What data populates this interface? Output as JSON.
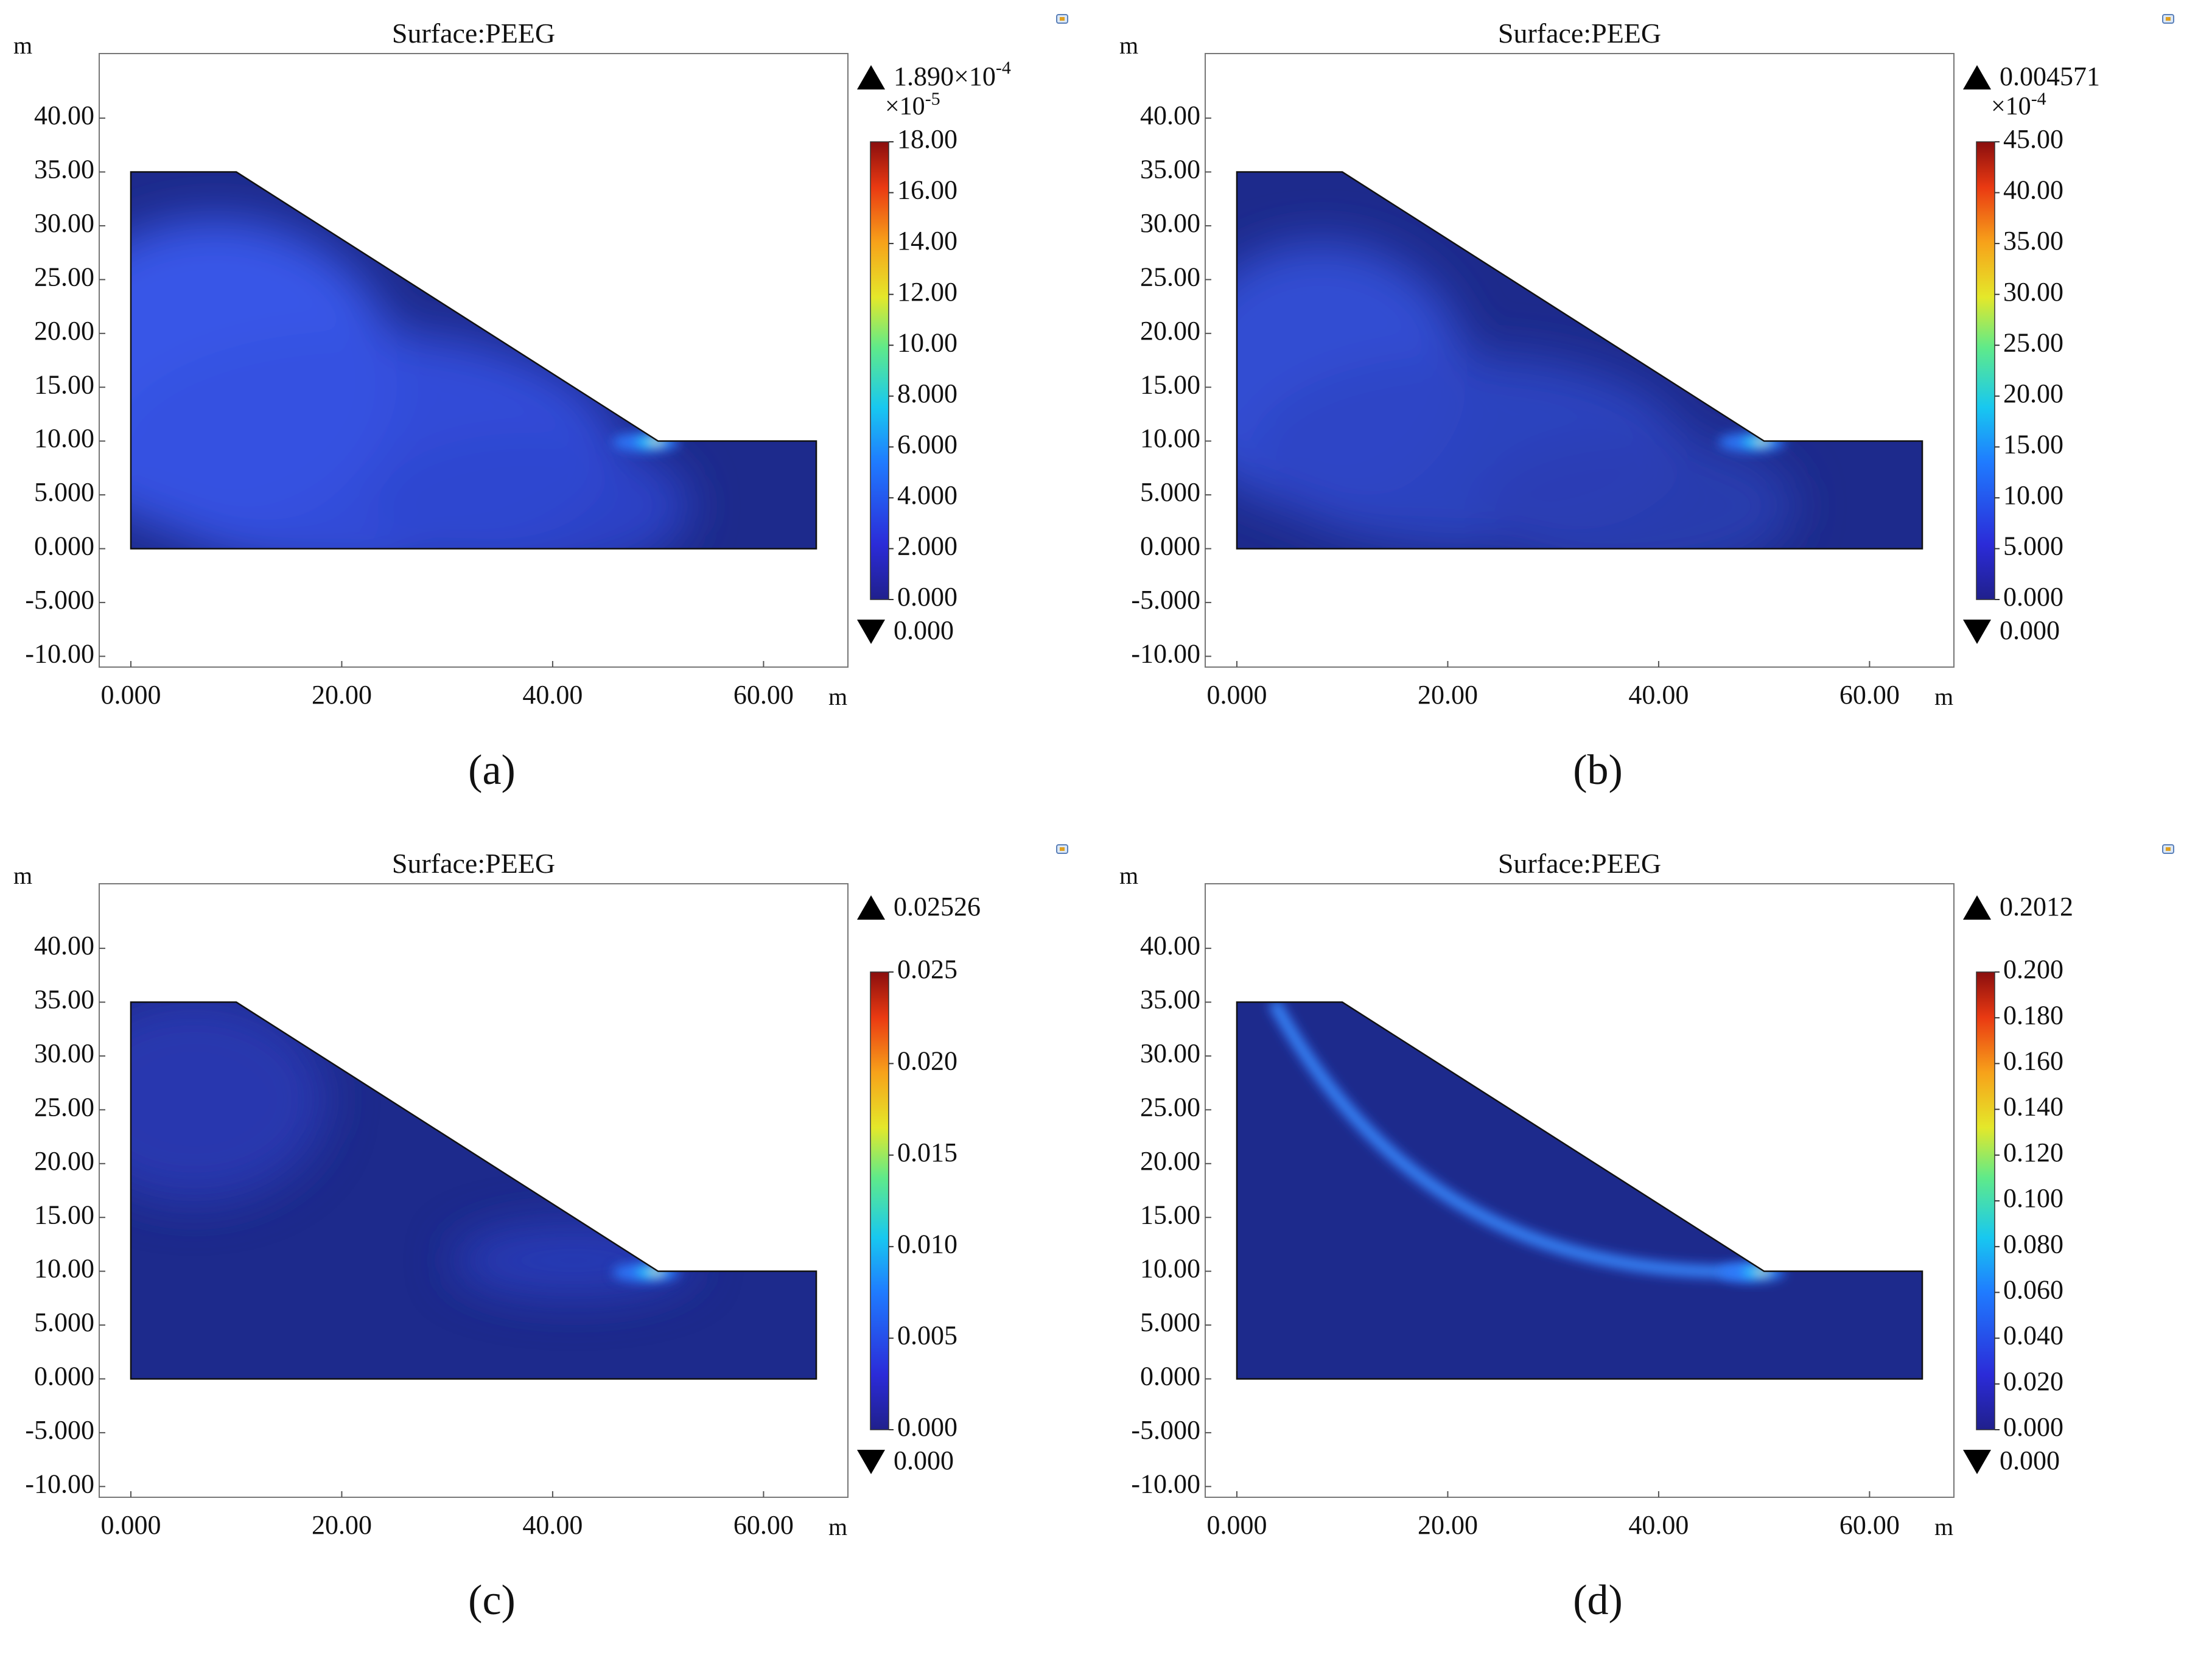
{
  "figure": {
    "panels": [
      {
        "tag": "(a)",
        "chart_title": "Surface:PEEG",
        "x_unit": "m",
        "y_unit": "m",
        "max_value": "1.890×10",
        "max_exp": "-4",
        "scale_prefix": "×10",
        "scale_exp": "-5",
        "min_value": "0.000",
        "colorbar_ticks": [
          "0.000",
          "2.000",
          "4.000",
          "6.000",
          "8.000",
          "10.00",
          "12.00",
          "14.00",
          "16.00",
          "18.00"
        ]
      },
      {
        "tag": "(b)",
        "chart_title": "Surface:PEEG",
        "x_unit": "m",
        "y_unit": "m",
        "max_value": "0.004571",
        "max_exp": "",
        "scale_prefix": "×10",
        "scale_exp": "-4",
        "min_value": "0.000",
        "colorbar_ticks": [
          "0.000",
          "5.000",
          "10.00",
          "15.00",
          "20.00",
          "25.00",
          "30.00",
          "35.00",
          "40.00",
          "45.00"
        ]
      },
      {
        "tag": "(c)",
        "chart_title": "Surface:PEEG",
        "x_unit": "m",
        "y_unit": "m",
        "max_value": "0.02526",
        "max_exp": "",
        "scale_prefix": "",
        "scale_exp": "",
        "min_value": "0.000",
        "colorbar_ticks": [
          "0.000",
          "0.005",
          "0.010",
          "0.015",
          "0.020",
          "0.025"
        ]
      },
      {
        "tag": "(d)",
        "chart_title": "Surface:PEEG",
        "x_unit": "m",
        "y_unit": "m",
        "max_value": "0.2012",
        "max_exp": "",
        "scale_prefix": "",
        "scale_exp": "",
        "min_value": "0.000",
        "colorbar_ticks": [
          "0.000",
          "0.020",
          "0.040",
          "0.060",
          "0.080",
          "0.100",
          "0.120",
          "0.140",
          "0.160",
          "0.180",
          "0.200"
        ]
      }
    ]
  },
  "chart_data": [
    {
      "type": "heatmap",
      "title": "Surface:PEEG",
      "xlabel": "m",
      "ylabel": "m",
      "x_ticks": [
        0,
        20,
        40,
        60
      ],
      "x_tick_labels": [
        "0.000",
        "20.00",
        "40.00",
        "60.00"
      ],
      "y_ticks": [
        -10,
        -5,
        0,
        5,
        10,
        15,
        20,
        25,
        30,
        35,
        40
      ],
      "y_tick_labels": [
        "-10.00",
        "-5.000",
        "0.000",
        "5.000",
        "10.00",
        "15.00",
        "20.00",
        "25.00",
        "30.00",
        "35.00",
        "40.00"
      ],
      "xlim": [
        -3,
        68
      ],
      "ylim": [
        -11,
        46
      ],
      "geometry_polygon": [
        [
          0,
          0
        ],
        [
          65,
          0
        ],
        [
          65,
          10
        ],
        [
          50,
          10
        ],
        [
          10,
          35
        ],
        [
          0,
          35
        ]
      ],
      "colorbar_range": [
        0,
        0.000189
      ],
      "max": 0.000189,
      "min": 0,
      "pattern": "broad"
    },
    {
      "type": "heatmap",
      "title": "Surface:PEEG",
      "xlabel": "m",
      "ylabel": "m",
      "x_ticks": [
        0,
        20,
        40,
        60
      ],
      "x_tick_labels": [
        "0.000",
        "20.00",
        "40.00",
        "60.00"
      ],
      "y_ticks": [
        -10,
        -5,
        0,
        5,
        10,
        15,
        20,
        25,
        30,
        35,
        40
      ],
      "y_tick_labels": [
        "-10.00",
        "-5.000",
        "0.000",
        "5.000",
        "10.00",
        "15.00",
        "20.00",
        "25.00",
        "30.00",
        "35.00",
        "40.00"
      ],
      "xlim": [
        -3,
        68
      ],
      "ylim": [
        -11,
        46
      ],
      "geometry_polygon": [
        [
          0,
          0
        ],
        [
          65,
          0
        ],
        [
          65,
          10
        ],
        [
          50,
          10
        ],
        [
          10,
          35
        ],
        [
          0,
          35
        ]
      ],
      "colorbar_range": [
        0,
        0.0045
      ],
      "max": 0.004571,
      "min": 0,
      "pattern": "moderate"
    },
    {
      "type": "heatmap",
      "title": "Surface:PEEG",
      "xlabel": "m",
      "ylabel": "m",
      "x_ticks": [
        0,
        20,
        40,
        60
      ],
      "x_tick_labels": [
        "0.000",
        "20.00",
        "40.00",
        "60.00"
      ],
      "y_ticks": [
        -10,
        -5,
        0,
        5,
        10,
        15,
        20,
        25,
        30,
        35,
        40
      ],
      "y_tick_labels": [
        "-10.00",
        "-5.000",
        "0.000",
        "5.000",
        "10.00",
        "15.00",
        "20.00",
        "25.00",
        "30.00",
        "35.00",
        "40.00"
      ],
      "xlim": [
        -3,
        68
      ],
      "ylim": [
        -11,
        46
      ],
      "geometry_polygon": [
        [
          0,
          0
        ],
        [
          65,
          0
        ],
        [
          65,
          10
        ],
        [
          50,
          10
        ],
        [
          10,
          35
        ],
        [
          0,
          35
        ]
      ],
      "colorbar_range": [
        0,
        0.025
      ],
      "max": 0.02526,
      "min": 0,
      "pattern": "toe"
    },
    {
      "type": "heatmap",
      "title": "Surface:PEEG",
      "xlabel": "m",
      "ylabel": "m",
      "x_ticks": [
        0,
        20,
        40,
        60
      ],
      "x_tick_labels": [
        "0.000",
        "20.00",
        "40.00",
        "60.00"
      ],
      "y_ticks": [
        -10,
        -5,
        0,
        5,
        10,
        15,
        20,
        25,
        30,
        35,
        40
      ],
      "y_tick_labels": [
        "-10.00",
        "-5.000",
        "0.000",
        "5.000",
        "10.00",
        "15.00",
        "20.00",
        "25.00",
        "30.00",
        "35.00",
        "40.00"
      ],
      "xlim": [
        -3,
        68
      ],
      "ylim": [
        -11,
        46
      ],
      "geometry_polygon": [
        [
          0,
          0
        ],
        [
          65,
          0
        ],
        [
          65,
          10
        ],
        [
          50,
          10
        ],
        [
          10,
          35
        ],
        [
          0,
          35
        ]
      ],
      "colorbar_range": [
        0,
        0.2
      ],
      "max": 0.2012,
      "min": 0,
      "pattern": "slip-band"
    }
  ]
}
